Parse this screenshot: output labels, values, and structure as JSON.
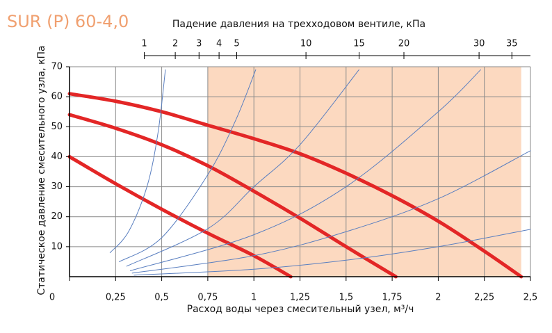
{
  "chart_data": {
    "type": "line",
    "title": "SUR (P) 60-4,0",
    "x2_label": "Падение давления на трехходовом вентиле, кПа",
    "x_label": "Расход воды через смесительный узел, м³/ч",
    "y_label": "Статическое давление смесительного узла, кПа",
    "xlim": [
      0,
      2.5
    ],
    "xticks": [
      0,
      {
        "value": 0.25,
        "label": "0,25"
      },
      {
        "value": 0.5,
        "label": "0,5"
      },
      {
        "value": 0.75,
        "label": "0,75"
      },
      1,
      {
        "value": 1.25,
        "label": "1,25"
      },
      {
        "value": 1.5,
        "label": "1,5"
      },
      {
        "value": 1.75,
        "label": "1,75"
      },
      2,
      {
        "value": 2.25,
        "label": "2,25"
      },
      {
        "value": 2.5,
        "label": "2,5"
      }
    ],
    "ylim": [
      0,
      70
    ],
    "yticks": [
      10,
      20,
      30,
      40,
      50,
      60,
      70
    ],
    "x2_scale": "sqrt",
    "x2lim": [
      0,
      38
    ],
    "x2ticks": [
      1,
      2,
      3,
      4,
      5,
      10,
      15,
      20,
      30,
      35
    ],
    "grid": true,
    "shaded_region": {
      "x": [
        0.75,
        2.45
      ],
      "color": "#fcd9c0"
    },
    "series": [
      {
        "color": "#e32626",
        "width": 5,
        "x": [
          0,
          0.25,
          0.5,
          0.75,
          1,
          1.25,
          1.5,
          1.75,
          2,
          2.25,
          2.45
        ],
        "values": [
          61,
          58.5,
          55,
          50.5,
          46,
          41,
          34.5,
          27,
          18.5,
          8.5,
          0
        ]
      },
      {
        "color": "#e32626",
        "width": 5,
        "x": [
          0,
          0.25,
          0.5,
          0.75,
          1,
          1.25,
          1.5,
          1.77
        ],
        "values": [
          54,
          49.5,
          44,
          37,
          28.5,
          19.5,
          10,
          0
        ]
      },
      {
        "color": "#e32626",
        "width": 5,
        "x": [
          0,
          0.25,
          0.5,
          0.75,
          1,
          1.2
        ],
        "values": [
          40,
          31,
          22.5,
          14.5,
          7,
          0
        ]
      },
      {
        "color": "#5a7fc0",
        "width": 1,
        "x": [
          0.22,
          0.32,
          0.42,
          0.48,
          0.52
        ],
        "values": [
          8,
          15,
          30,
          48,
          69
        ]
      },
      {
        "color": "#5a7fc0",
        "width": 1,
        "x": [
          0.27,
          0.5,
          0.75,
          0.9,
          1.01
        ],
        "values": [
          5,
          13,
          34,
          52,
          69
        ]
      },
      {
        "color": "#5a7fc0",
        "width": 1,
        "x": [
          0.31,
          0.75,
          1,
          1.25,
          1.57
        ],
        "values": [
          3.5,
          16,
          30,
          44,
          69
        ]
      },
      {
        "color": "#5a7fc0",
        "width": 1,
        "x": [
          0.33,
          1,
          1.5,
          2,
          2.23
        ],
        "values": [
          2,
          14,
          30,
          55,
          69
        ]
      },
      {
        "color": "#5a7fc0",
        "width": 1,
        "x": [
          0.34,
          1,
          1.5,
          2,
          2.5
        ],
        "values": [
          1.2,
          7,
          15,
          26,
          42
        ]
      },
      {
        "color": "#5a7fc0",
        "width": 1,
        "x": [
          0.35,
          1,
          1.5,
          2,
          2.5
        ],
        "values": [
          0.5,
          2.5,
          5.5,
          10,
          15.8
        ]
      }
    ]
  }
}
